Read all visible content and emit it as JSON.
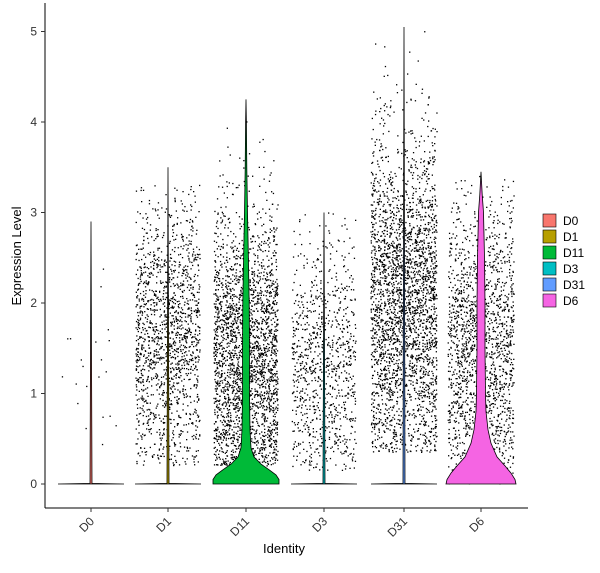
{
  "chart_data": {
    "type": "violin",
    "title": "",
    "xlabel": "Identity",
    "ylabel": "Expression Level",
    "ylim": [
      -0.3,
      5.1
    ],
    "yticks": [
      0,
      1,
      2,
      3,
      4,
      5
    ],
    "categories": [
      "D0",
      "D1",
      "D11",
      "D3",
      "D31",
      "D6"
    ],
    "colors": [
      "#F8766D",
      "#B79F00",
      "#00BA38",
      "#00BFC4",
      "#619CFF",
      "#F564E3"
    ],
    "series": [
      {
        "name": "D0",
        "max": 2.9,
        "nonzero_min": 0.4,
        "nonzero_max": 2.6,
        "bulk_at_zero": true
      },
      {
        "name": "D1",
        "max": 3.5,
        "nonzero_min": 0.2,
        "nonzero_max": 3.3,
        "bulk_at_zero": true
      },
      {
        "name": "D11",
        "max": 4.25,
        "nonzero_min": 0.2,
        "nonzero_max": 4.1,
        "bulk_at_zero": false
      },
      {
        "name": "D3",
        "max": 3.0,
        "nonzero_min": 0.15,
        "nonzero_max": 3.0,
        "bulk_at_zero": true
      },
      {
        "name": "D31",
        "max": 5.05,
        "nonzero_min": 0.35,
        "nonzero_max": 5.0,
        "bulk_at_zero": true
      },
      {
        "name": "D6",
        "max": 3.45,
        "nonzero_min": 0.0,
        "nonzero_max": 3.4,
        "bulk_at_zero": false
      }
    ],
    "legend": {
      "position": "right",
      "entries": [
        "D0",
        "D1",
        "D11",
        "D3",
        "D31",
        "D6"
      ]
    },
    "grid": false
  }
}
